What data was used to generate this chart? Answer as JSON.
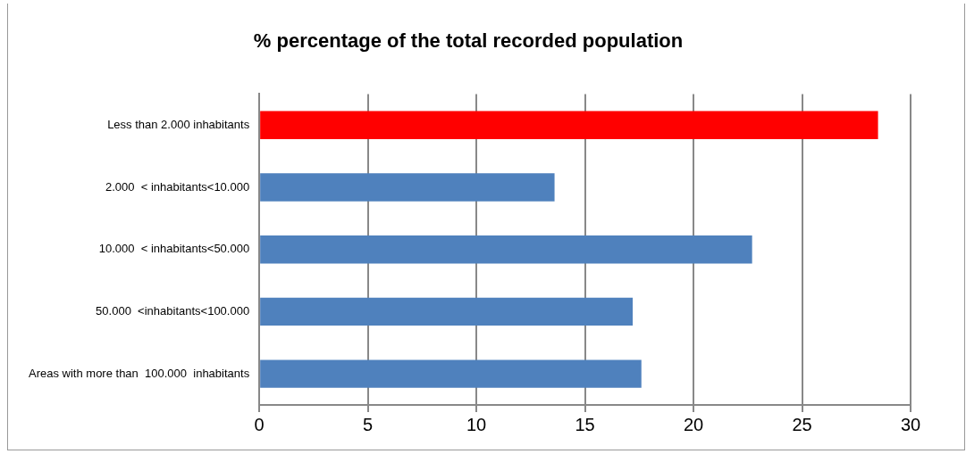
{
  "chart_data": {
    "type": "bar",
    "orientation": "horizontal",
    "title": "% percentage of the total recorded population",
    "categories": [
      "Less than 2.000 inhabitants",
      "2.000  < inhabitants<10.000",
      "10.000  < inhabitants<50.000",
      "50.000  <inhabitants<100.000",
      "Areas with more than  100.000  inhabitants"
    ],
    "values": [
      28.5,
      13.6,
      22.7,
      17.2,
      17.6
    ],
    "colors": [
      "#ff0000",
      "#4f81bd",
      "#4f81bd",
      "#4f81bd",
      "#4f81bd"
    ],
    "xlim": [
      0,
      30
    ],
    "xticks": [
      0,
      5,
      10,
      15,
      20,
      25,
      30
    ],
    "grid": "x",
    "legend": false
  }
}
